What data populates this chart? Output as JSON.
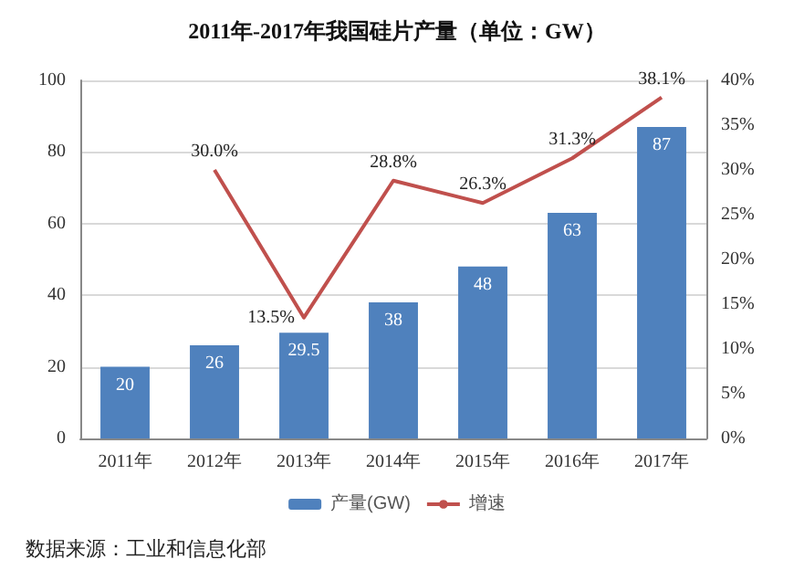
{
  "chart_data": {
    "type": "bar",
    "title": "2011年-2017年我国硅片产量（单位：GW）",
    "categories": [
      "2011年",
      "2012年",
      "2013年",
      "2014年",
      "2015年",
      "2016年",
      "2017年"
    ],
    "series": [
      {
        "name": "产量(GW)",
        "color": "#4f81bd",
        "values": [
          20,
          26,
          29.5,
          38,
          48,
          63,
          87
        ],
        "value_labels": [
          "20",
          "26",
          "29.5",
          "38",
          "48",
          "63",
          "87"
        ]
      },
      {
        "name": "增速",
        "type": "line",
        "axis": "y2",
        "color": "#c0504d",
        "values": [
          null,
          30.0,
          13.5,
          28.8,
          26.3,
          31.3,
          38.1
        ],
        "value_labels": [
          null,
          "30.0%",
          "13.5%",
          "28.8%",
          "26.3%",
          "31.3%",
          "38.1%"
        ]
      }
    ],
    "ylim": [
      0,
      100
    ],
    "yticks": [
      0,
      20,
      40,
      60,
      80,
      100
    ],
    "y2lim": [
      0,
      40
    ],
    "y2ticks": [
      {
        "value": 0,
        "label": "0%"
      },
      {
        "value": 5,
        "label": "5%"
      },
      {
        "value": 10,
        "label": "10%"
      },
      {
        "value": 15,
        "label": "15%"
      },
      {
        "value": 20,
        "label": "20%"
      },
      {
        "value": 25,
        "label": "25%"
      },
      {
        "value": 30,
        "label": "30%"
      },
      {
        "value": 35,
        "label": "35%"
      },
      {
        "value": 40,
        "label": "40%"
      }
    ],
    "grid": "y",
    "legend": "bottom",
    "marker": "none",
    "line_style": "solid",
    "annotations": [
      "数据来源：工业和信息化部"
    ]
  }
}
